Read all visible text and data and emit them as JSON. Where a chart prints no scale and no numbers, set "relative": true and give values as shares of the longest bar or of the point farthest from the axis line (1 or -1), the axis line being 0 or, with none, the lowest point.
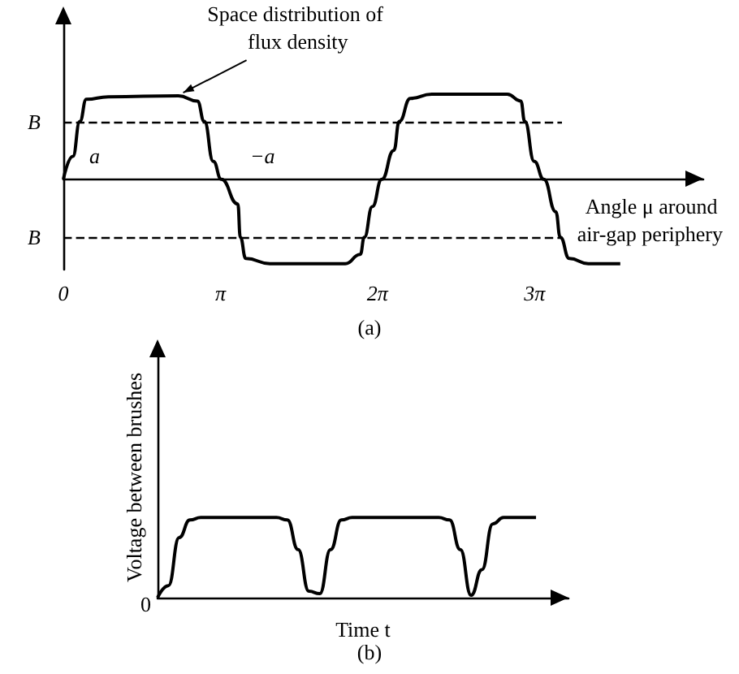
{
  "chart_data": [
    {
      "type": "line",
      "title": "(a)",
      "xlabel": "Angle μ around air-gap periphery",
      "relative": true,
      "x": [
        0,
        0.19,
        0.33,
        0.46,
        0.9,
        2.3,
        2.68,
        2.82,
        3.0,
        3.16,
        3.49,
        3.54,
        3.65,
        4.13,
        5.64,
        5.94,
        6.02,
        6.18,
        6.37,
        6.61,
        6.72,
        6.94,
        7.37,
        8.88,
        9.15,
        9.23,
        9.42,
        9.61,
        9.85,
        9.94,
        10.12,
        10.5,
        11.14
      ],
      "series": [
        {
          "color": "#000000",
          "values": [
            0,
            0.27,
            0.68,
            0.94,
            0.97,
            0.98,
            0.92,
            0.68,
            0.21,
            0,
            -0.29,
            -0.68,
            -0.93,
            -0.99,
            -0.99,
            -0.88,
            -0.68,
            -0.32,
            0,
            0.34,
            0.68,
            0.95,
            1,
            1,
            0.92,
            0.68,
            0.21,
            0,
            -0.38,
            -0.68,
            -0.93,
            -0.99,
            -0.99
          ]
        }
      ],
      "xlim": [
        0,
        12.8
      ],
      "xticks": [
        {
          "value": 0,
          "label": "0"
        },
        {
          "value": 3.1416,
          "label": "π"
        },
        {
          "value": 6.2832,
          "label": "2π"
        },
        {
          "value": 9.4248,
          "label": "3π"
        }
      ],
      "ref_lines": [
        {
          "axis": "y",
          "value": 0.68,
          "label": "B",
          "color": "#000000",
          "line_style": "dashed"
        },
        {
          "axis": "y",
          "value": -0.68,
          "label": "B",
          "color": "#000000",
          "line_style": "dashed"
        }
      ],
      "annotations": [
        {
          "text": "Space distribution of flux density",
          "x": 2.3,
          "y": 0.98
        },
        "a",
        "−a"
      ],
      "grid": false,
      "marker": "none",
      "line_style": "solid"
    },
    {
      "type": "line",
      "title": "(b)",
      "xlabel": "Time t",
      "ylabel": "Voltage between brushes",
      "relative": true,
      "categories": [
        null,
        null,
        null,
        null,
        null,
        null,
        null,
        null,
        null,
        null,
        null,
        null,
        null,
        null,
        null,
        null,
        null,
        null,
        null,
        null,
        null,
        null,
        null,
        null,
        null,
        null,
        null,
        null,
        null,
        null,
        null,
        null,
        null,
        null,
        null,
        null,
        null,
        null,
        null
      ],
      "series": [
        {
          "color": "#000000",
          "values": [
            0,
            0.15,
            0.75,
            0.97,
            1,
            1,
            1,
            1,
            1,
            1,
            1,
            1,
            0.97,
            0.6,
            0.08,
            0.05,
            0.6,
            0.97,
            1,
            1,
            1,
            1,
            1,
            1,
            1,
            1,
            1,
            0.97,
            0.6,
            0.03,
            0.35,
            0.92,
            1,
            1,
            1,
            1,
            null,
            null,
            null
          ]
        }
      ],
      "annotations": [
        "0"
      ],
      "grid": false,
      "marker": "none",
      "line_style": "solid"
    }
  ]
}
